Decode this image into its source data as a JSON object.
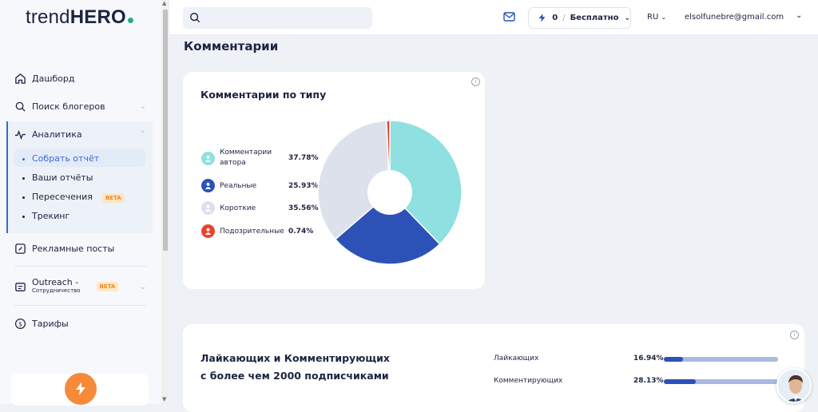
{
  "brand": {
    "logo_light": "trend",
    "logo_bold": "HERO"
  },
  "sidebar": {
    "items": [
      {
        "label": "Дашборд"
      },
      {
        "label": "Поиск блогеров"
      },
      {
        "label": "Аналитика"
      },
      {
        "label": "Рекламные посты"
      },
      {
        "label": "Outreach -",
        "sublabel": "Сотрудничество",
        "badge": "BETA"
      },
      {
        "label": "Тарифы"
      }
    ],
    "analytics_sub": [
      {
        "label": "Собрать отчёт"
      },
      {
        "label": "Ваши отчёты"
      },
      {
        "label": "Пересечения",
        "badge": "BETA"
      },
      {
        "label": "Трекинг"
      }
    ]
  },
  "header": {
    "plan_count": "0",
    "plan_sep": "/",
    "plan_name": "Бесплатно",
    "lang": "RU",
    "email": "elsolfunebre@gmail.com"
  },
  "page": {
    "title": "Комментарии"
  },
  "comments_card": {
    "title": "Комментарии по типу"
  },
  "chart_data": {
    "type": "pie",
    "donut": true,
    "labels": [
      "Комментарии автора",
      "Реальные",
      "Короткие",
      "Подозрительные"
    ],
    "legend_label_lines": [
      [
        "Комментарии",
        "автора"
      ],
      [
        "Реальные"
      ],
      [
        "Короткие"
      ],
      [
        "Подозрительные"
      ]
    ],
    "values": [
      37.78,
      25.93,
      35.56,
      0.74
    ],
    "value_labels": [
      "37.78%",
      "25.93%",
      "35.56%",
      "0.74%"
    ],
    "colors": [
      "#8fe0e0",
      "#2c52b8",
      "#dde1ec",
      "#e8442a"
    ],
    "legend_position": "left"
  },
  "followers_card": {
    "title_line1": "Лайкающих и Комментирующих",
    "title_line2": "с более чем 2000 подписчиками",
    "rows": [
      {
        "label": "Лайкающих",
        "value": "16.94%",
        "percent": 16.94
      },
      {
        "label": "Комментирующих",
        "value": "28.13%",
        "percent": 28.13
      }
    ]
  },
  "colors": {
    "accent": "#3a67d6",
    "orange": "#f58b3a"
  }
}
